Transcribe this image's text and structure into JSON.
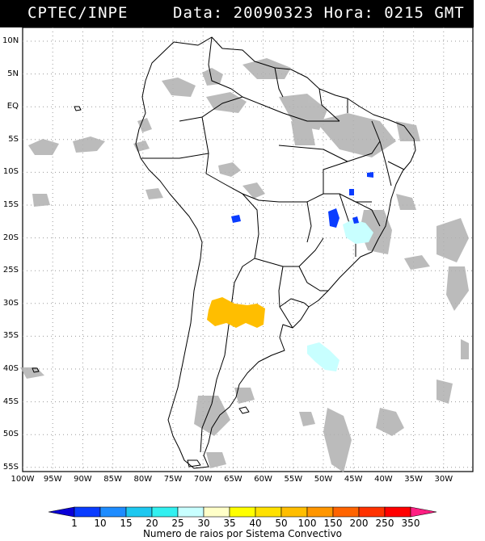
{
  "header": {
    "left": "CPTEC/INPE",
    "right": "Data: 20090323 Hora: 0215 GMT"
  },
  "map": {
    "lat_labels": [
      "10N",
      "5N",
      "EQ",
      "5S",
      "10S",
      "15S",
      "20S",
      "25S",
      "30S",
      "35S",
      "40S",
      "45S",
      "50S",
      "55S"
    ],
    "lon_labels": [
      "100W",
      "95W",
      "90W",
      "85W",
      "80W",
      "75W",
      "70W",
      "65W",
      "60W",
      "55W",
      "50W",
      "45W",
      "40W",
      "35W",
      "30W"
    ],
    "lat_range": [
      -56,
      12
    ],
    "lon_range": [
      -100,
      -27
    ],
    "grid": "dotted"
  },
  "colorbar": {
    "labels": [
      "1",
      "10",
      "15",
      "20",
      "25",
      "30",
      "35",
      "40",
      "50",
      "100",
      "150",
      "200",
      "250",
      "350"
    ],
    "colors": [
      "#0a00d8",
      "#0a3cff",
      "#1e8cff",
      "#1ec8f0",
      "#32f0f0",
      "#c8ffff",
      "#ffffc8",
      "#ffff00",
      "#ffe100",
      "#ffbe00",
      "#ff9600",
      "#ff6400",
      "#ff3200",
      "#ff0000",
      "#ff1e82"
    ],
    "title": "Numero de raios por Sistema Convectivo"
  },
  "systems": [
    {
      "name": "argentina-large-system",
      "color": "#ffbe00"
    },
    {
      "name": "sa-coast-system",
      "color": "#c8ffff"
    },
    {
      "name": "minas-system",
      "color": "#c8ffff"
    },
    {
      "name": "central-brazil-system",
      "color": "#0a3cff"
    },
    {
      "name": "bolivia-system",
      "color": "#0a3cff"
    },
    {
      "name": "bahia-system",
      "color": "#0a3cff"
    },
    {
      "name": "goias-system",
      "color": "#0a3cff"
    }
  ]
}
